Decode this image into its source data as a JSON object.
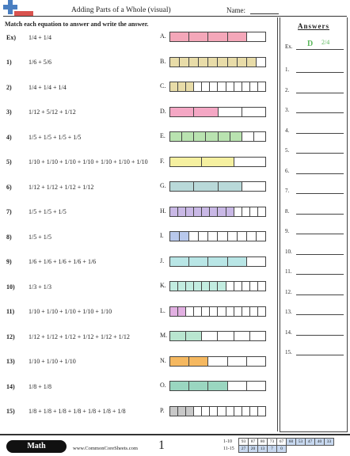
{
  "header": {
    "title": "Adding Parts of a Whole (visual)",
    "name_label": "Name:"
  },
  "instructions": "Match each equation to answer and write the answer.",
  "answers_panel": {
    "title": "Answers",
    "example_label": "Ex.",
    "example_letter": "D",
    "example_fraction": "2/4",
    "rows": [
      "1.",
      "2.",
      "3.",
      "4.",
      "5.",
      "6.",
      "7.",
      "8.",
      "9.",
      "10.",
      "11.",
      "12.",
      "13.",
      "14.",
      "15."
    ]
  },
  "problems": [
    {
      "num": "Ex)",
      "expr": "1/4 + 1/4"
    },
    {
      "num": "1)",
      "expr": "1/6 + 5/6"
    },
    {
      "num": "2)",
      "expr": "1/4 + 1/4 + 1/4"
    },
    {
      "num": "3)",
      "expr": "1/12 + 5/12 + 1/12"
    },
    {
      "num": "4)",
      "expr": "1/5 + 1/5 + 1/5 + 1/5"
    },
    {
      "num": "5)",
      "expr": "1/10 + 1/10 + 1/10 + 1/10 + 1/10 + 1/10 + 1/10"
    },
    {
      "num": "6)",
      "expr": "1/12 + 1/12 + 1/12 + 1/12"
    },
    {
      "num": "7)",
      "expr": "1/5 + 1/5 + 1/5"
    },
    {
      "num": "8)",
      "expr": "1/5 + 1/5"
    },
    {
      "num": "9)",
      "expr": "1/6 + 1/6 + 1/6 + 1/6 + 1/6"
    },
    {
      "num": "10)",
      "expr": "1/3 + 1/3"
    },
    {
      "num": "11)",
      "expr": "1/10 + 1/10 + 1/10 + 1/10 + 1/10"
    },
    {
      "num": "12)",
      "expr": "1/12 + 1/12 + 1/12 + 1/12 + 1/12 + 1/12"
    },
    {
      "num": "13)",
      "expr": "1/10 + 1/10 + 1/10"
    },
    {
      "num": "14)",
      "expr": "1/8 + 1/8"
    },
    {
      "num": "15)",
      "expr": "1/8 + 1/8 + 1/8 + 1/8 + 1/8 + 1/8 + 1/8"
    }
  ],
  "bars": [
    {
      "letter": "A.",
      "parts": 5,
      "filled": 4,
      "color": "#f4a7b9"
    },
    {
      "letter": "B.",
      "parts": 10,
      "filled": 9,
      "color": "#e8dca8"
    },
    {
      "letter": "C.",
      "parts": 12,
      "filled": 3,
      "color": "#e8dca8"
    },
    {
      "letter": "D.",
      "parts": 4,
      "filled": 2,
      "color": "#f4a7c4"
    },
    {
      "letter": "E.",
      "parts": 8,
      "filled": 6,
      "color": "#b9e3b0"
    },
    {
      "letter": "F.",
      "parts": 3,
      "filled": 2,
      "color": "#f5f0a0"
    },
    {
      "letter": "G.",
      "parts": 4,
      "filled": 3,
      "color": "#b9d9d9"
    },
    {
      "letter": "H.",
      "parts": 12,
      "filled": 8,
      "color": "#c9b8e6"
    },
    {
      "letter": "I.",
      "parts": 10,
      "filled": 2,
      "color": "#b8c8ec"
    },
    {
      "letter": "J.",
      "parts": 5,
      "filled": 4,
      "color": "#b9e6e6"
    },
    {
      "letter": "K.",
      "parts": 12,
      "filled": 7,
      "color": "#c2ece0"
    },
    {
      "letter": "L.",
      "parts": 12,
      "filled": 2,
      "color": "#e2b0e2"
    },
    {
      "letter": "M.",
      "parts": 6,
      "filled": 2,
      "color": "#b9e6d0"
    },
    {
      "letter": "N.",
      "parts": 5,
      "filled": 2,
      "color": "#f5b860"
    },
    {
      "letter": "O.",
      "parts": 5,
      "filled": 3,
      "color": "#9ad6c0"
    },
    {
      "letter": "P.",
      "parts": 12,
      "filled": 3,
      "color": "#c8c8c8"
    }
  ],
  "footer": {
    "math_label": "Math",
    "site": "www.CommonCoreSheets.com",
    "page": "1",
    "score_rows": [
      {
        "label": "1-10",
        "cells": [
          "93",
          "87",
          "80",
          "73",
          "67",
          "60",
          "53",
          "47",
          "40",
          "33"
        ]
      },
      {
        "label": "11-15",
        "cells": [
          "27",
          "20",
          "13",
          "7",
          "0"
        ]
      }
    ]
  },
  "colors": {
    "accent_green": "#5cb85c",
    "logo_blue": "#4a7fc1",
    "logo_red": "#d9534f"
  }
}
